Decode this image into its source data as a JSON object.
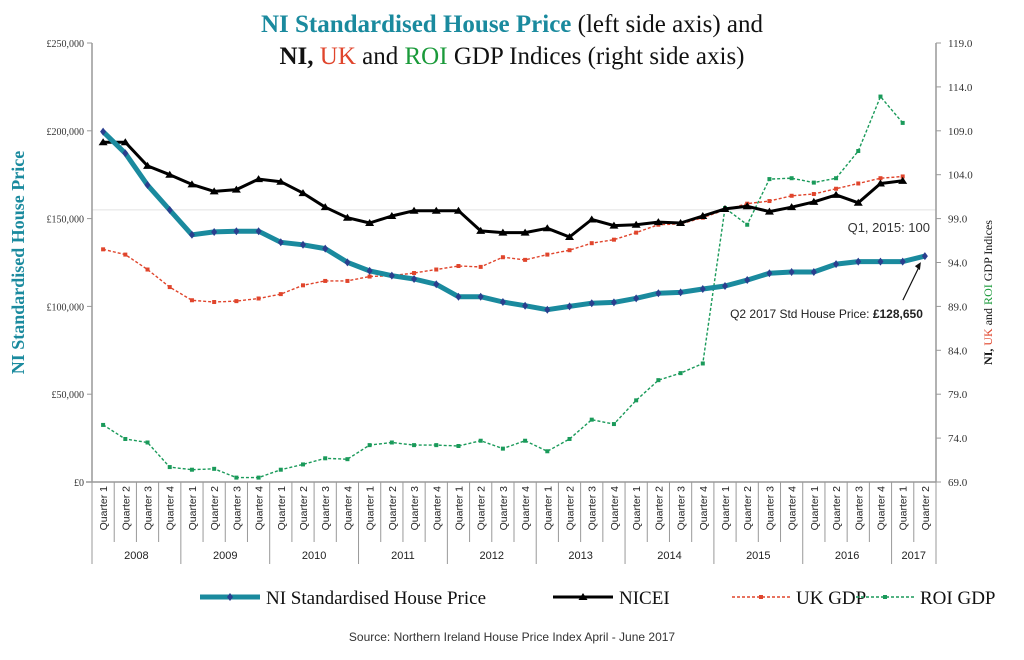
{
  "chart_data": {
    "type": "line",
    "title_line1": [
      {
        "text": "NI Standardised House Price",
        "color": "#1a8a9e",
        "bold": true
      },
      {
        "text": " (left side axis) and",
        "color": "#111111",
        "bold": false
      }
    ],
    "title_line2": [
      {
        "text": "NI, ",
        "color": "#111111",
        "bold": true
      },
      {
        "text": "UK",
        "color": "#e0452c",
        "bold": false
      },
      {
        "text": " and ",
        "color": "#111111",
        "bold": false
      },
      {
        "text": "ROI",
        "color": "#1a9a3a",
        "bold": false
      },
      {
        "text": " GDP Indices (right side axis)",
        "color": "#111111",
        "bold": false
      }
    ],
    "ylabel_left": "NI Standardised House Price",
    "ylabel_right_parts": [
      {
        "text": "NI, ",
        "color": "#111111",
        "bold": true
      },
      {
        "text": "UK",
        "color": "#e0452c",
        "bold": false
      },
      {
        "text": " and ",
        "color": "#111111",
        "bold": false
      },
      {
        "text": "ROI",
        "color": "#1a9a3a",
        "bold": false
      },
      {
        "text": " GDP Indices",
        "color": "#111111",
        "bold": false
      }
    ],
    "ylim_left": [
      0,
      250000
    ],
    "ylim_right": [
      69,
      119
    ],
    "yticks_left": [
      "£0",
      "£50,000",
      "£100,000",
      "£150,000",
      "£200,000",
      "£250,000"
    ],
    "yticks_left_values": [
      0,
      50000,
      100000,
      150000,
      200000,
      250000
    ],
    "yticks_right": [
      "69.0",
      "74.0",
      "79.0",
      "84.0",
      "89.0",
      "94.0",
      "99.0",
      "104.0",
      "109.0",
      "114.0",
      "119.0"
    ],
    "yticks_right_values": [
      69,
      74,
      79,
      84,
      89,
      94,
      99,
      104,
      109,
      114,
      119
    ],
    "years": [
      {
        "label": "2008",
        "quarters": 4
      },
      {
        "label": "2009",
        "quarters": 4
      },
      {
        "label": "2010",
        "quarters": 4
      },
      {
        "label": "2011",
        "quarters": 4
      },
      {
        "label": "2012",
        "quarters": 4
      },
      {
        "label": "2013",
        "quarters": 4
      },
      {
        "label": "2014",
        "quarters": 4
      },
      {
        "label": "2015",
        "quarters": 4
      },
      {
        "label": "2016",
        "quarters": 4
      },
      {
        "label": "2017",
        "quarters": 2
      }
    ],
    "quarter_labels": [
      "Quarter 1",
      "Quarter 2",
      "Quarter 3",
      "Quarter 4"
    ],
    "reference_line": {
      "value": 100,
      "axis": "right",
      "label": "Q1, 2015: 100"
    },
    "annotation": {
      "prefix": "Q2 2017 Std House Price: ",
      "value": "£128,650"
    },
    "series": [
      {
        "name": "NI Standardised House Price",
        "axis": "left",
        "color": "#1a8a9e",
        "marker_color": "#2a3f8f",
        "style": "solid-thick",
        "marker": "diamond",
        "values": [
          199500,
          187200,
          169100,
          154900,
          140800,
          142400,
          142800,
          142800,
          136500,
          135100,
          132900,
          125100,
          120200,
          117500,
          115600,
          112600,
          105500,
          105500,
          102500,
          100400,
          98100,
          100000,
          101800,
          102300,
          104600,
          107500,
          108000,
          109900,
          111600,
          115000,
          118900,
          119600,
          119600,
          124100,
          125500,
          125500,
          125500,
          128650
        ]
      },
      {
        "name": "NICEI",
        "axis": "right",
        "color": "#000000",
        "style": "solid",
        "marker": "triangle",
        "values": [
          107.7,
          107.7,
          105.0,
          104.0,
          102.9,
          102.1,
          102.3,
          103.5,
          103.2,
          101.9,
          100.3,
          99.1,
          98.5,
          99.3,
          99.9,
          99.9,
          99.9,
          97.6,
          97.4,
          97.4,
          97.9,
          96.9,
          98.9,
          98.2,
          98.3,
          98.6,
          98.5,
          99.3,
          100.1,
          100.4,
          99.8,
          100.3,
          100.9,
          101.7,
          100.8,
          103.0,
          103.3
        ]
      },
      {
        "name": "UK GDP",
        "axis": "right",
        "color": "#e0452c",
        "style": "dashed",
        "marker": "square",
        "values": [
          95.5,
          94.9,
          93.2,
          91.2,
          89.7,
          89.5,
          89.6,
          89.9,
          90.4,
          91.4,
          91.9,
          91.9,
          92.4,
          92.5,
          92.8,
          93.2,
          93.6,
          93.5,
          94.6,
          94.3,
          94.9,
          95.4,
          96.2,
          96.6,
          97.4,
          98.3,
          98.4,
          99.1,
          100.0,
          100.7,
          101.0,
          101.6,
          101.8,
          102.4,
          103.0,
          103.6,
          103.8
        ]
      },
      {
        "name": "ROI GDP",
        "axis": "right",
        "color": "#1a9a5a",
        "style": "dashed",
        "marker": "square",
        "values": [
          75.5,
          73.9,
          73.5,
          70.7,
          70.4,
          70.5,
          69.5,
          69.5,
          70.4,
          71.0,
          71.7,
          71.6,
          73.2,
          73.5,
          73.2,
          73.2,
          73.1,
          73.7,
          72.8,
          73.7,
          72.5,
          73.9,
          76.1,
          75.6,
          78.3,
          80.6,
          81.4,
          82.5,
          100.2,
          98.3,
          103.5,
          103.6,
          103.1,
          103.6,
          106.7,
          112.9,
          109.9
        ]
      }
    ],
    "legend": [
      {
        "label": "NI Standardised House Price"
      },
      {
        "label": "NICEI"
      },
      {
        "label": "UK GDP"
      },
      {
        "label": "ROI GDP"
      }
    ],
    "legend_position": "bottom",
    "source": "Source: Northern Ireland House Price Index April - June 2017"
  }
}
